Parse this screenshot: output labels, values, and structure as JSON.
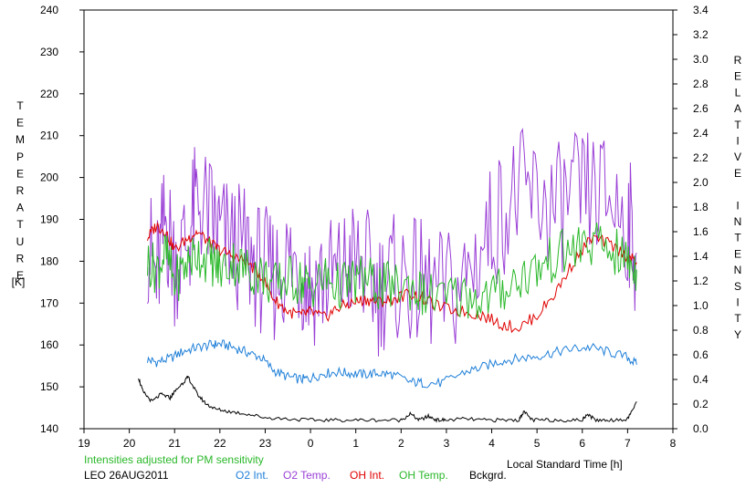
{
  "chart_data": {
    "type": "line",
    "title": "",
    "station": "LEO 26AUG2011",
    "note": "Intensities adjusted for PM sensitivity",
    "xlabel": "Local Standard Time [h]",
    "ylabel_left": "TEMPERATURE",
    "ylabel_left_unit": "[K]",
    "ylabel_right": "RELATIVE INTENSITY",
    "x_ticks": [
      "19",
      "20",
      "21",
      "22",
      "23",
      "0",
      "1",
      "2",
      "3",
      "4",
      "5",
      "6",
      "7",
      "8"
    ],
    "xlim": [
      19,
      32
    ],
    "ylim_left": [
      140,
      240
    ],
    "y_ticks_left": [
      "140",
      "150",
      "160",
      "170",
      "180",
      "190",
      "200",
      "210",
      "220",
      "230",
      "240"
    ],
    "ylim_right": [
      0.0,
      3.4
    ],
    "y_ticks_right": [
      "0.0",
      "0.2",
      "0.4",
      "0.6",
      "0.8",
      "1.0",
      "1.2",
      "1.4",
      "1.6",
      "1.8",
      "2.0",
      "2.2",
      "2.4",
      "2.6",
      "2.8",
      "3.0",
      "3.2",
      "3.4"
    ],
    "grid": false,
    "legend_position": "bottom",
    "series": [
      {
        "name": "O2 Int.",
        "axis": "right",
        "color": "#1e7fd8",
        "x": [
          20.4,
          20.6,
          20.9,
          21.2,
          21.5,
          21.8,
          22.0,
          22.3,
          22.6,
          22.9,
          23.2,
          23.5,
          23.8,
          24.0,
          24.3,
          24.6,
          24.9,
          25.2,
          25.5,
          25.8,
          26.2,
          26.5,
          26.9,
          27.4,
          27.8,
          28.2,
          28.6,
          29.0,
          29.4,
          29.8,
          30.2,
          30.6,
          31.0,
          31.2
        ],
        "y": [
          0.56,
          0.54,
          0.57,
          0.63,
          0.66,
          0.68,
          0.69,
          0.66,
          0.62,
          0.58,
          0.47,
          0.42,
          0.4,
          0.41,
          0.45,
          0.46,
          0.45,
          0.44,
          0.45,
          0.44,
          0.38,
          0.37,
          0.37,
          0.46,
          0.5,
          0.55,
          0.57,
          0.59,
          0.62,
          0.65,
          0.66,
          0.62,
          0.58,
          0.52
        ]
      },
      {
        "name": "O2 Temp.",
        "axis": "left",
        "color": "#9a3fd6",
        "x": [
          20.4,
          20.6,
          20.8,
          21.0,
          21.3,
          21.5,
          21.8,
          22.0,
          22.3,
          22.6,
          22.9,
          23.2,
          23.5,
          23.8,
          24.0,
          24.3,
          24.6,
          24.9,
          25.2,
          25.5,
          25.8,
          26.2,
          26.5,
          26.9,
          27.4,
          27.8,
          28.2,
          28.6,
          29.0,
          29.4,
          29.8,
          30.2,
          30.6,
          31.0,
          31.2
        ],
        "y": [
          185,
          175,
          190,
          180,
          185,
          195,
          190,
          186,
          184,
          182,
          178,
          176,
          180,
          178,
          174,
          176,
          176,
          180,
          178,
          173,
          176,
          175,
          174,
          172,
          175,
          184,
          192,
          196,
          195,
          192,
          195,
          196,
          195,
          190,
          182
        ]
      },
      {
        "name": "OH Int.",
        "axis": "right",
        "color": "#e00000",
        "x": [
          20.4,
          20.6,
          20.8,
          21.0,
          21.3,
          21.5,
          21.8,
          22.0,
          22.3,
          22.6,
          22.9,
          23.2,
          23.5,
          23.8,
          24.0,
          24.3,
          24.6,
          24.9,
          25.2,
          25.5,
          25.8,
          26.2,
          26.5,
          26.9,
          27.4,
          27.8,
          28.2,
          28.6,
          29.0,
          29.4,
          29.8,
          30.2,
          30.6,
          31.0,
          31.2
        ],
        "y": [
          1.55,
          1.65,
          1.6,
          1.45,
          1.55,
          1.6,
          1.5,
          1.45,
          1.4,
          1.35,
          1.25,
          1.05,
          0.95,
          0.92,
          0.95,
          0.9,
          0.98,
          1.02,
          1.05,
          1.03,
          1.05,
          1.1,
          1.05,
          0.98,
          0.95,
          0.92,
          0.85,
          0.82,
          0.92,
          1.1,
          1.35,
          1.55,
          1.5,
          1.4,
          1.35
        ]
      },
      {
        "name": "OH Temp.",
        "axis": "left",
        "color": "#2ab82a",
        "x": [
          20.4,
          20.6,
          20.8,
          21.0,
          21.3,
          21.5,
          21.8,
          22.0,
          22.3,
          22.6,
          22.9,
          23.2,
          23.5,
          23.8,
          24.0,
          24.3,
          24.6,
          24.9,
          25.2,
          25.5,
          25.8,
          26.2,
          26.5,
          26.9,
          27.4,
          27.8,
          28.2,
          28.6,
          29.0,
          29.4,
          29.8,
          30.2,
          30.6,
          31.0,
          31.2
        ],
        "y": [
          180,
          178,
          182,
          175,
          180,
          182,
          180,
          178,
          180,
          178,
          177,
          174,
          176,
          175,
          174,
          176,
          174,
          175,
          176,
          174,
          174,
          174,
          172,
          171,
          172,
          171,
          173,
          176,
          178,
          181,
          183,
          184,
          183,
          180,
          178
        ]
      },
      {
        "name": "Bckgrd.",
        "axis": "right",
        "color": "#000000",
        "x": [
          20.2,
          20.3,
          20.5,
          20.7,
          20.9,
          21.0,
          21.2,
          21.3,
          21.5,
          21.7,
          21.9,
          22.2,
          22.6,
          23.0,
          23.5,
          24.0,
          24.5,
          25.0,
          25.5,
          26.0,
          26.2,
          26.4,
          26.6,
          26.8,
          27.0,
          27.4,
          27.8,
          28.2,
          28.6,
          28.7,
          28.9,
          29.2,
          29.6,
          30.0,
          30.1,
          30.3,
          30.6,
          31.0,
          31.2
        ],
        "y": [
          0.42,
          0.3,
          0.22,
          0.28,
          0.25,
          0.3,
          0.38,
          0.42,
          0.28,
          0.2,
          0.16,
          0.14,
          0.12,
          0.09,
          0.08,
          0.07,
          0.07,
          0.07,
          0.07,
          0.07,
          0.12,
          0.07,
          0.1,
          0.07,
          0.07,
          0.08,
          0.07,
          0.07,
          0.07,
          0.14,
          0.07,
          0.07,
          0.07,
          0.07,
          0.12,
          0.07,
          0.07,
          0.08,
          0.22
        ]
      }
    ]
  }
}
